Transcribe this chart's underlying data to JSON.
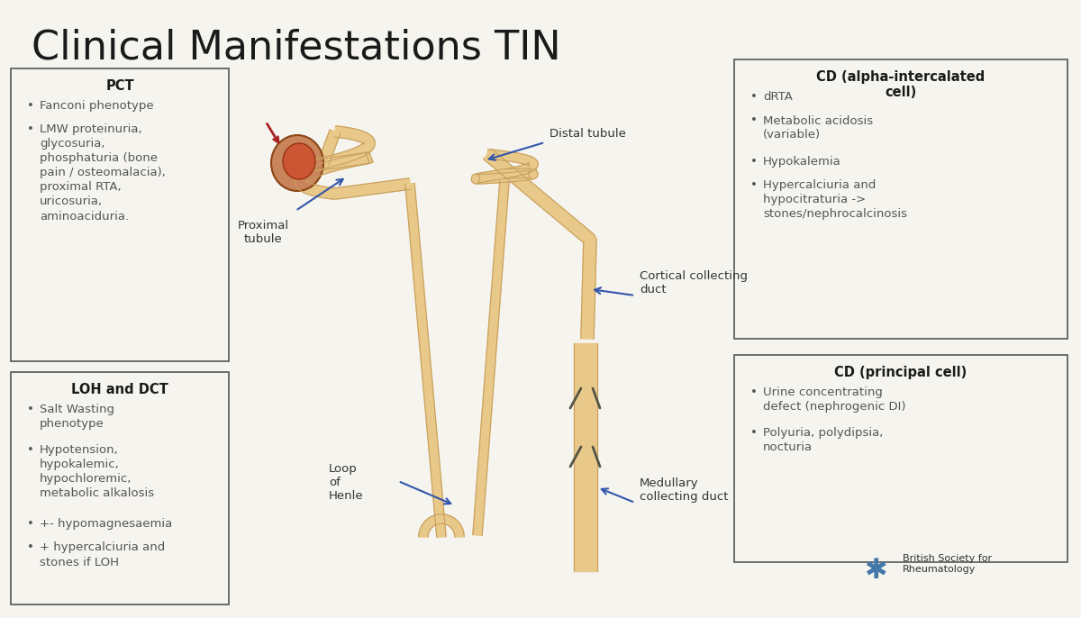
{
  "title": "Clinical Manifestations TIN",
  "bg_color": "#F5F4EF",
  "title_color": "#1a1a1a",
  "title_fontsize": 32,
  "box_edge_color": "#555555",
  "box_face_color": "#F5F4EF",
  "header_color": "#1a1a1a",
  "text_color": "#555555",
  "arrow_color": "#3355aa",
  "label_color": "#333333",
  "pct_title": "PCT",
  "pct_bullets": [
    "Fanconi phenotype",
    "LMW proteinuria,\nglycosuria,\nphosphaturia (bone\npain / osteomalacia),\nproximal RTA,\nuricosuria,\naminoaciduria."
  ],
  "loh_title": "LOH and DCT",
  "loh_bullets": [
    "Salt Wasting\nphenotype",
    "Hypotension,\nhypokalemic,\nhypochloremic,\nmetabolic alkalosis",
    "+- hypomagnesaemia",
    "+ hypercalciuria and\nstones if LOH"
  ],
  "cd_alpha_title": "CD (alpha-intercalated\ncell)",
  "cd_alpha_bullets": [
    "dRTA",
    "Metabolic acidosis\n(variable)",
    "Hypokalemia",
    "Hypercalciuria and\nhypocitraturia ->\nstones/nephrocalcinosis"
  ],
  "cd_principal_title": "CD (principal cell)",
  "cd_principal_bullets": [
    "Urine concentrating\ndefect (nephrogenic DI)",
    "Polyuria, polydipsia,\nnocturia"
  ],
  "anatomy_labels": {
    "proximal_tubule": "Proximal\ntubule",
    "distal_tubule": "Distal tubule",
    "loop_of_henle": "Loop\nof\nHenle",
    "cortical_cd": "Cortical collecting\nduct",
    "medullary_cd": "Medullary\ncollecting duct"
  }
}
